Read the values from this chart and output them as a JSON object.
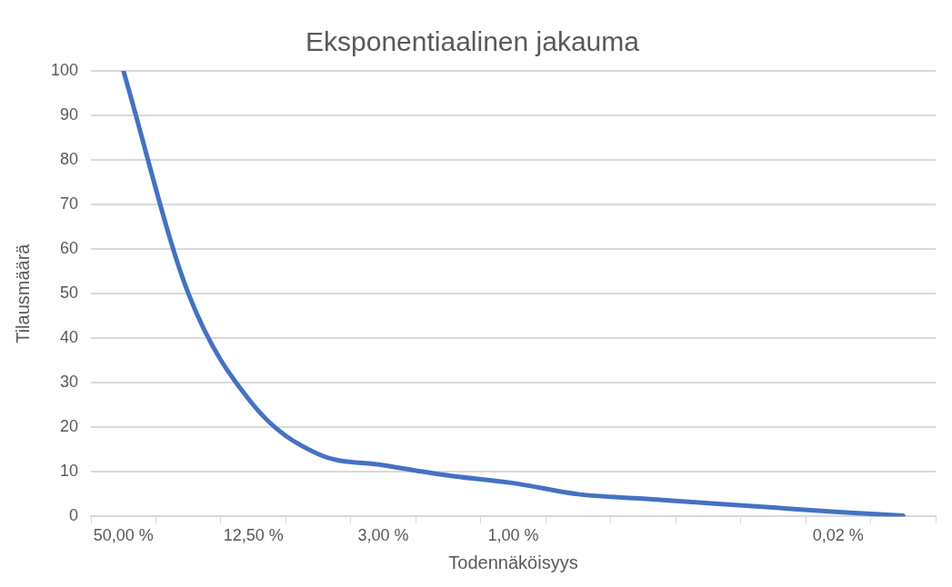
{
  "chart_data": {
    "type": "line",
    "title": "Eksponentiaalinen jakauma",
    "xlabel": "Todennäköisyys",
    "ylabel": "Tilausmäärä",
    "categories": [
      "50,00 %",
      null,
      "12,50 %",
      null,
      "3,00 %",
      null,
      "1,00 %",
      null,
      null,
      null,
      null,
      "0,02 %",
      null
    ],
    "series": [
      {
        "color": "#4472c4",
        "values": [
          100,
          50,
          25,
          14,
          11.5,
          9.2,
          7.5,
          5,
          4,
          3,
          2,
          1,
          0.2
        ]
      }
    ],
    "ylim": [
      0,
      100
    ],
    "yticks": [
      0,
      10,
      20,
      30,
      40,
      50,
      60,
      70,
      80,
      90,
      100
    ],
    "grid": "y",
    "marker": "none",
    "line_style": "solid"
  }
}
